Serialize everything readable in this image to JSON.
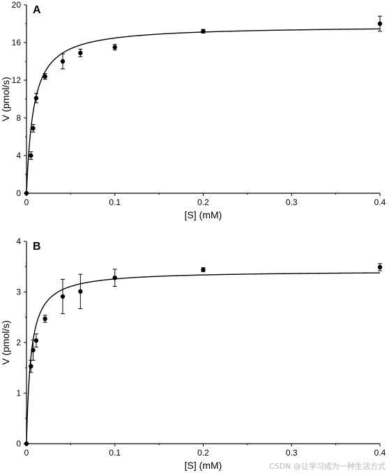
{
  "chart_data": [
    {
      "type": "scatter",
      "panel_label": "A",
      "xlabel": "[S] (mM)",
      "ylabel": "V (pmol/s)",
      "xlim": [
        0,
        0.4
      ],
      "ylim": [
        0,
        20
      ],
      "xticks": [
        0,
        0.1,
        0.2,
        0.3,
        0.4
      ],
      "xtick_labels": [
        "0",
        "0.1",
        "0.2",
        "0.3",
        "0.4"
      ],
      "yticks": [
        0,
        4,
        8,
        12,
        16,
        20
      ],
      "ytick_labels": [
        "0",
        "4",
        "8",
        "12",
        "16",
        "20"
      ],
      "fit": {
        "vmax": 17.8,
        "km": 0.008
      },
      "x": [
        0,
        0.005,
        0.0075,
        0.011,
        0.021,
        0.041,
        0.061,
        0.1,
        0.2,
        0.4
      ],
      "y": [
        0,
        4.0,
        6.9,
        10.1,
        12.4,
        14.0,
        14.9,
        15.5,
        17.2,
        18.0
      ],
      "err": [
        0,
        0.4,
        0.4,
        0.5,
        0.3,
        0.8,
        0.4,
        0.3,
        0.2,
        0.8
      ]
    },
    {
      "type": "scatter",
      "panel_label": "B",
      "xlabel": "[S] (mM)",
      "ylabel": "V (pmol/s)",
      "xlim": [
        0,
        0.4
      ],
      "ylim": [
        0,
        4
      ],
      "xticks": [
        0,
        0.1,
        0.2,
        0.3,
        0.4
      ],
      "xtick_labels": [
        "0",
        "0.1",
        "0.2",
        "0.3",
        "0.4"
      ],
      "yticks": [
        0,
        1,
        2,
        3,
        4
      ],
      "ytick_labels": [
        "0",
        "1",
        "2",
        "3",
        "4"
      ],
      "fit": {
        "vmax": 3.42,
        "km": 0.005
      },
      "x": [
        0,
        0.005,
        0.0075,
        0.011,
        0.021,
        0.041,
        0.061,
        0.1,
        0.2,
        0.4
      ],
      "y": [
        0,
        1.53,
        1.85,
        2.04,
        2.47,
        2.91,
        3.01,
        3.28,
        3.44,
        3.49
      ],
      "err": [
        0,
        0.12,
        0.2,
        0.13,
        0.07,
        0.34,
        0.34,
        0.17,
        0.04,
        0.07
      ]
    }
  ],
  "watermark": "CSDN @让学习成为一种生活方式"
}
